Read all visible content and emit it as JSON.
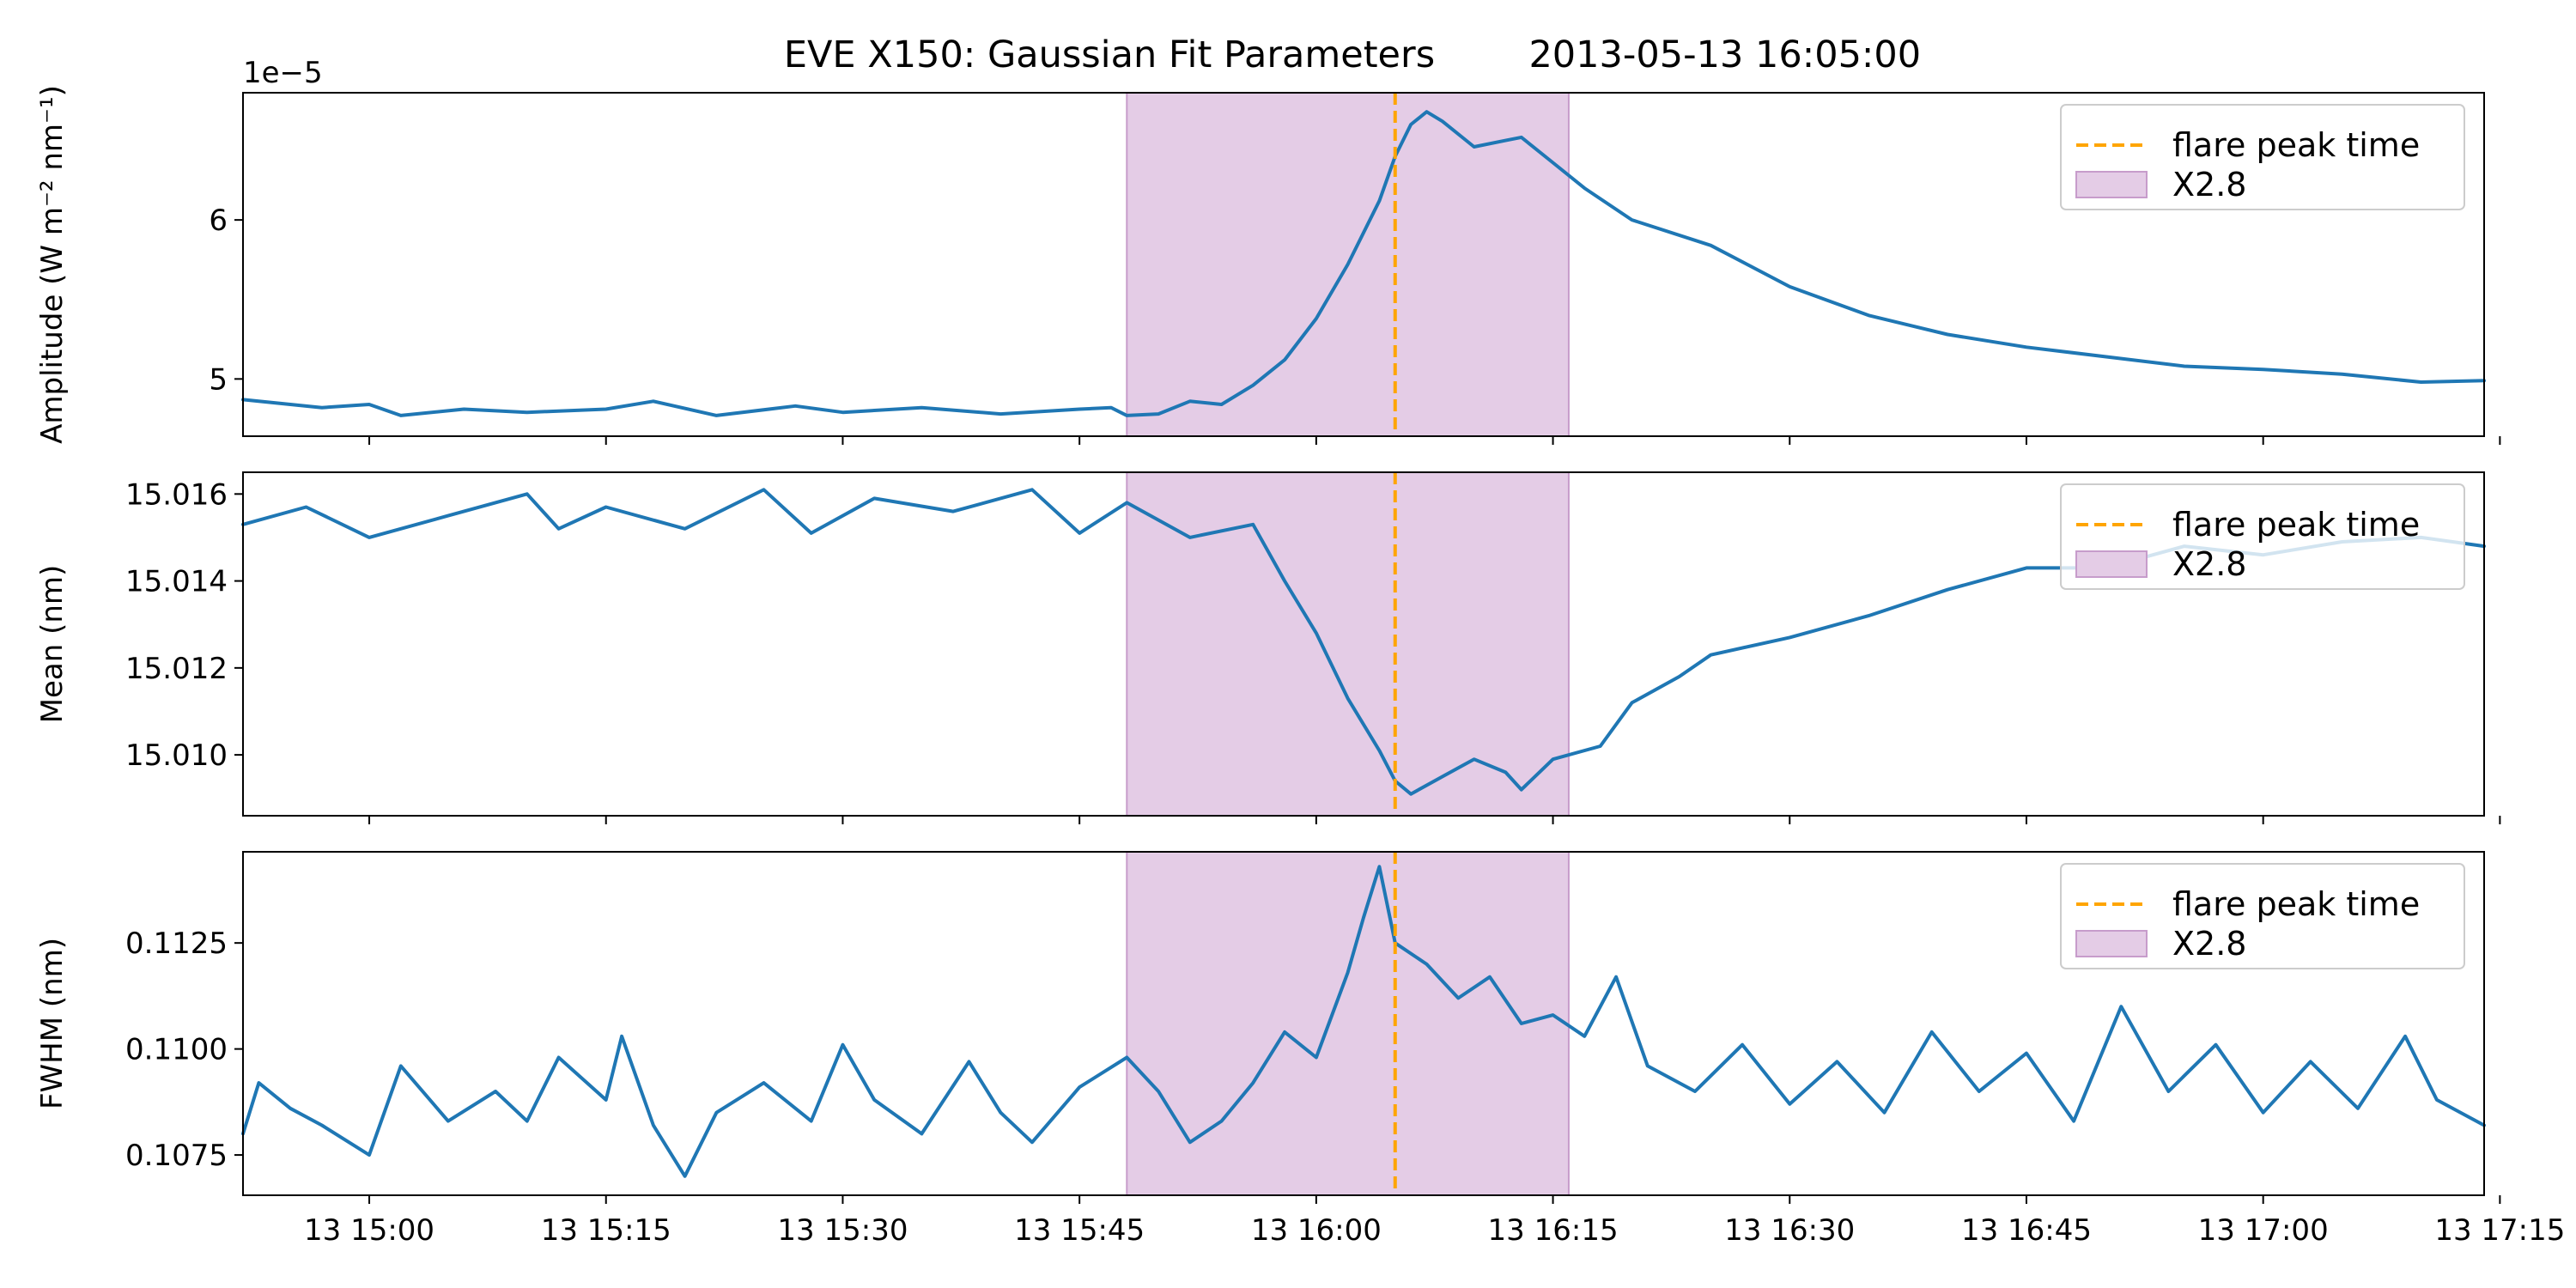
{
  "chart_data": {
    "type": "line",
    "title": "EVE X150: Gaussian Fit Parameters        2013-05-13 16:05:00",
    "x_range": [
      "2013-05-13 14:52:00",
      "2013-05-13 17:14:00"
    ],
    "x_ticks": [
      {
        "time": "2013-05-13 15:00",
        "label": "13 15:00"
      },
      {
        "time": "2013-05-13 15:15",
        "label": "13 15:15"
      },
      {
        "time": "2013-05-13 15:30",
        "label": "13 15:30"
      },
      {
        "time": "2013-05-13 15:45",
        "label": "13 15:45"
      },
      {
        "time": "2013-05-13 16:00",
        "label": "13 16:00"
      },
      {
        "time": "2013-05-13 16:15",
        "label": "13 16:15"
      },
      {
        "time": "2013-05-13 16:30",
        "label": "13 16:30"
      },
      {
        "time": "2013-05-13 16:45",
        "label": "13 16:45"
      },
      {
        "time": "2013-05-13 17:00",
        "label": "13 17:00"
      },
      {
        "time": "2013-05-13 17:15",
        "label": "13 17:15"
      }
    ],
    "flare_peak_time": "2013-05-13 16:05:00",
    "flare_window": {
      "start": "2013-05-13 15:48:00",
      "end": "2013-05-13 16:16:00",
      "label": "X2.8"
    },
    "legend": {
      "placement": "top-right",
      "entries": [
        "flare peak time",
        "X2.8"
      ]
    },
    "colors": {
      "line": "#1f77b4",
      "peak": "#ffa500",
      "shade": "#e4cce6",
      "shade_edge": "#c79ccb"
    },
    "panels": [
      {
        "name": "amplitude",
        "ylabel": "Amplitude (W m⁻² nm⁻¹)",
        "offset_text": "1e−5",
        "ylim": [
          4.64,
          6.8
        ],
        "yticks": [
          {
            "value": 5,
            "label": "5"
          },
          {
            "value": 6,
            "label": "6"
          }
        ],
        "series": [
          {
            "points": [
              [
                "2013-05-13 14:52:00",
                4.87
              ],
              [
                "2013-05-13 14:57:00",
                4.82
              ],
              [
                "2013-05-13 15:00:00",
                4.84
              ],
              [
                "2013-05-13 15:02:00",
                4.77
              ],
              [
                "2013-05-13 15:06:00",
                4.81
              ],
              [
                "2013-05-13 15:10:00",
                4.79
              ],
              [
                "2013-05-13 15:15:00",
                4.81
              ],
              [
                "2013-05-13 15:18:00",
                4.86
              ],
              [
                "2013-05-13 15:22:00",
                4.77
              ],
              [
                "2013-05-13 15:27:00",
                4.83
              ],
              [
                "2013-05-13 15:30:00",
                4.79
              ],
              [
                "2013-05-13 15:35:00",
                4.82
              ],
              [
                "2013-05-13 15:40:00",
                4.78
              ],
              [
                "2013-05-13 15:45:00",
                4.81
              ],
              [
                "2013-05-13 15:47:00",
                4.82
              ],
              [
                "2013-05-13 15:48:00",
                4.77
              ],
              [
                "2013-05-13 15:50:00",
                4.78
              ],
              [
                "2013-05-13 15:52:00",
                4.86
              ],
              [
                "2013-05-13 15:54:00",
                4.84
              ],
              [
                "2013-05-13 15:56:00",
                4.96
              ],
              [
                "2013-05-13 15:58:00",
                5.12
              ],
              [
                "2013-05-13 16:00:00",
                5.38
              ],
              [
                "2013-05-13 16:02:00",
                5.72
              ],
              [
                "2013-05-13 16:04:00",
                6.12
              ],
              [
                "2013-05-13 16:05:00",
                6.4
              ],
              [
                "2013-05-13 16:06:00",
                6.6
              ],
              [
                "2013-05-13 16:07:00",
                6.68
              ],
              [
                "2013-05-13 16:08:00",
                6.62
              ],
              [
                "2013-05-13 16:10:00",
                6.46
              ],
              [
                "2013-05-13 16:12:00",
                6.5
              ],
              [
                "2013-05-13 16:13:00",
                6.52
              ],
              [
                "2013-05-13 16:15:00",
                6.36
              ],
              [
                "2013-05-13 16:17:00",
                6.2
              ],
              [
                "2013-05-13 16:20:00",
                6.0
              ],
              [
                "2013-05-13 16:25:00",
                5.84
              ],
              [
                "2013-05-13 16:30:00",
                5.58
              ],
              [
                "2013-05-13 16:35:00",
                5.4
              ],
              [
                "2013-05-13 16:40:00",
                5.28
              ],
              [
                "2013-05-13 16:45:00",
                5.2
              ],
              [
                "2013-05-13 16:50:00",
                5.14
              ],
              [
                "2013-05-13 16:55:00",
                5.08
              ],
              [
                "2013-05-13 17:00:00",
                5.06
              ],
              [
                "2013-05-13 17:05:00",
                5.03
              ],
              [
                "2013-05-13 17:10:00",
                4.98
              ],
              [
                "2013-05-13 17:14:00",
                4.99
              ]
            ]
          }
        ]
      },
      {
        "name": "mean",
        "ylabel": "Mean (nm)",
        "offset_text": "",
        "ylim": [
          15.0086,
          15.0165
        ],
        "yticks": [
          {
            "value": 15.01,
            "label": "15.010"
          },
          {
            "value": 15.012,
            "label": "15.012"
          },
          {
            "value": 15.014,
            "label": "15.014"
          },
          {
            "value": 15.016,
            "label": "15.016"
          }
        ],
        "series": [
          {
            "points": [
              [
                "2013-05-13 14:52:00",
                15.0153
              ],
              [
                "2013-05-13 14:56:00",
                15.0157
              ],
              [
                "2013-05-13 15:00:00",
                15.015
              ],
              [
                "2013-05-13 15:05:00",
                15.0155
              ],
              [
                "2013-05-13 15:10:00",
                15.016
              ],
              [
                "2013-05-13 15:12:00",
                15.0152
              ],
              [
                "2013-05-13 15:15:00",
                15.0157
              ],
              [
                "2013-05-13 15:20:00",
                15.0152
              ],
              [
                "2013-05-13 15:25:00",
                15.0161
              ],
              [
                "2013-05-13 15:28:00",
                15.0151
              ],
              [
                "2013-05-13 15:32:00",
                15.0159
              ],
              [
                "2013-05-13 15:37:00",
                15.0156
              ],
              [
                "2013-05-13 15:42:00",
                15.0161
              ],
              [
                "2013-05-13 15:45:00",
                15.0151
              ],
              [
                "2013-05-13 15:48:00",
                15.0158
              ],
              [
                "2013-05-13 15:52:00",
                15.015
              ],
              [
                "2013-05-13 15:56:00",
                15.0153
              ],
              [
                "2013-05-13 15:58:00",
                15.014
              ],
              [
                "2013-05-13 16:00:00",
                15.0128
              ],
              [
                "2013-05-13 16:02:00",
                15.0113
              ],
              [
                "2013-05-13 16:04:00",
                15.0101
              ],
              [
                "2013-05-13 16:05:00",
                15.0094
              ],
              [
                "2013-05-13 16:06:00",
                15.0091
              ],
              [
                "2013-05-13 16:08:00",
                15.0095
              ],
              [
                "2013-05-13 16:10:00",
                15.0099
              ],
              [
                "2013-05-13 16:12:00",
                15.0096
              ],
              [
                "2013-05-13 16:13:00",
                15.0092
              ],
              [
                "2013-05-13 16:15:00",
                15.0099
              ],
              [
                "2013-05-13 16:18:00",
                15.0102
              ],
              [
                "2013-05-13 16:20:00",
                15.0112
              ],
              [
                "2013-05-13 16:23:00",
                15.0118
              ],
              [
                "2013-05-13 16:25:00",
                15.0123
              ],
              [
                "2013-05-13 16:30:00",
                15.0127
              ],
              [
                "2013-05-13 16:35:00",
                15.0132
              ],
              [
                "2013-05-13 16:40:00",
                15.0138
              ],
              [
                "2013-05-13 16:45:00",
                15.0143
              ],
              [
                "2013-05-13 16:50:00",
                15.0143
              ],
              [
                "2013-05-13 16:55:00",
                15.0148
              ],
              [
                "2013-05-13 17:00:00",
                15.0146
              ],
              [
                "2013-05-13 17:05:00",
                15.0149
              ],
              [
                "2013-05-13 17:10:00",
                15.015
              ],
              [
                "2013-05-13 17:14:00",
                15.0148
              ]
            ]
          }
        ]
      },
      {
        "name": "fwhm",
        "ylabel": "FWHM (nm)",
        "offset_text": "",
        "ylim": [
          0.10655,
          0.11465
        ],
        "yticks": [
          {
            "value": 0.1075,
            "label": "0.1075"
          },
          {
            "value": 0.11,
            "label": "0.1100"
          },
          {
            "value": 0.1125,
            "label": "0.1125"
          }
        ],
        "series": [
          {
            "points": [
              [
                "2013-05-13 14:52:00",
                0.108
              ],
              [
                "2013-05-13 14:53:00",
                0.1092
              ],
              [
                "2013-05-13 14:55:00",
                0.1086
              ],
              [
                "2013-05-13 14:57:00",
                0.1082
              ],
              [
                "2013-05-13 15:00:00",
                0.1075
              ],
              [
                "2013-05-13 15:02:00",
                0.1096
              ],
              [
                "2013-05-13 15:05:00",
                0.1083
              ],
              [
                "2013-05-13 15:08:00",
                0.109
              ],
              [
                "2013-05-13 15:10:00",
                0.1083
              ],
              [
                "2013-05-13 15:12:00",
                0.1098
              ],
              [
                "2013-05-13 15:15:00",
                0.1088
              ],
              [
                "2013-05-13 15:16:00",
                0.1103
              ],
              [
                "2013-05-13 15:18:00",
                0.1082
              ],
              [
                "2013-05-13 15:20:00",
                0.107
              ],
              [
                "2013-05-13 15:22:00",
                0.1085
              ],
              [
                "2013-05-13 15:25:00",
                0.1092
              ],
              [
                "2013-05-13 15:28:00",
                0.1083
              ],
              [
                "2013-05-13 15:30:00",
                0.1101
              ],
              [
                "2013-05-13 15:32:00",
                0.1088
              ],
              [
                "2013-05-13 15:35:00",
                0.108
              ],
              [
                "2013-05-13 15:38:00",
                0.1097
              ],
              [
                "2013-05-13 15:40:00",
                0.1085
              ],
              [
                "2013-05-13 15:42:00",
                0.1078
              ],
              [
                "2013-05-13 15:45:00",
                0.1091
              ],
              [
                "2013-05-13 15:48:00",
                0.1098
              ],
              [
                "2013-05-13 15:50:00",
                0.109
              ],
              [
                "2013-05-13 15:52:00",
                0.1078
              ],
              [
                "2013-05-13 15:54:00",
                0.1083
              ],
              [
                "2013-05-13 15:56:00",
                0.1092
              ],
              [
                "2013-05-13 15:58:00",
                0.1104
              ],
              [
                "2013-05-13 16:00:00",
                0.1098
              ],
              [
                "2013-05-13 16:02:00",
                0.1118
              ],
              [
                "2013-05-13 16:03:00",
                0.1131
              ],
              [
                "2013-05-13 16:04:00",
                0.1143
              ],
              [
                "2013-05-13 16:05:00",
                0.1125
              ],
              [
                "2013-05-13 16:07:00",
                0.112
              ],
              [
                "2013-05-13 16:09:00",
                0.1112
              ],
              [
                "2013-05-13 16:11:00",
                0.1117
              ],
              [
                "2013-05-13 16:13:00",
                0.1106
              ],
              [
                "2013-05-13 16:15:00",
                0.1108
              ],
              [
                "2013-05-13 16:17:00",
                0.1103
              ],
              [
                "2013-05-13 16:19:00",
                0.1117
              ],
              [
                "2013-05-13 16:21:00",
                0.1096
              ],
              [
                "2013-05-13 16:24:00",
                0.109
              ],
              [
                "2013-05-13 16:27:00",
                0.1101
              ],
              [
                "2013-05-13 16:30:00",
                0.1087
              ],
              [
                "2013-05-13 16:33:00",
                0.1097
              ],
              [
                "2013-05-13 16:36:00",
                0.1085
              ],
              [
                "2013-05-13 16:39:00",
                0.1104
              ],
              [
                "2013-05-13 16:42:00",
                0.109
              ],
              [
                "2013-05-13 16:45:00",
                0.1099
              ],
              [
                "2013-05-13 16:48:00",
                0.1083
              ],
              [
                "2013-05-13 16:51:00",
                0.111
              ],
              [
                "2013-05-13 16:54:00",
                0.109
              ],
              [
                "2013-05-13 16:57:00",
                0.1101
              ],
              [
                "2013-05-13 17:00:00",
                0.1085
              ],
              [
                "2013-05-13 17:03:00",
                0.1097
              ],
              [
                "2013-05-13 17:06:00",
                0.1086
              ],
              [
                "2013-05-13 17:09:00",
                0.1103
              ],
              [
                "2013-05-13 17:11:00",
                0.1088
              ],
              [
                "2013-05-13 17:14:00",
                0.1082
              ]
            ]
          }
        ]
      }
    ]
  }
}
